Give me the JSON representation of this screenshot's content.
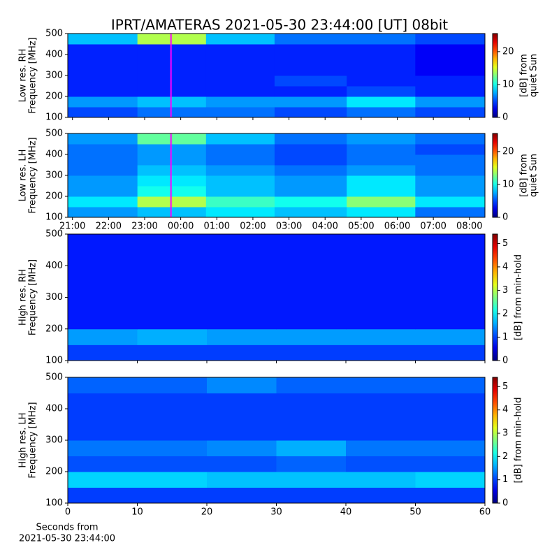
{
  "chart_data": [
    {
      "type": "heatmap",
      "title": "IPRT/AMATERAS 2021-05-30 23:44:00 [UT]   08bit",
      "ylabel": [
        "Low res. RH",
        "Frequency [MHz]"
      ],
      "colorbar_label": [
        "[dB] from",
        "quiet Sun"
      ],
      "x": [
        20.87,
        22.8,
        24.7,
        26.6,
        28.6,
        30.5,
        32.43
      ],
      "y": [
        100,
        150,
        200,
        250,
        300,
        350,
        400,
        450,
        500
      ],
      "xlim": [
        20.87,
        32.43
      ],
      "ylim": [
        100,
        500
      ],
      "yticks": [
        100,
        200,
        300,
        400,
        500
      ],
      "clim": [
        0,
        25.5
      ],
      "cticks": [
        0,
        10,
        20
      ],
      "colormap": "jet",
      "cursor_x": 23.73,
      "cursor_color": "#ff00ff",
      "z": [
        [
          5,
          6,
          6,
          5,
          6,
          5
        ],
        [
          7,
          8,
          7,
          7,
          9,
          7
        ],
        [
          4,
          4,
          4,
          4,
          5,
          4
        ],
        [
          4,
          4,
          4,
          5,
          4,
          4
        ],
        [
          4,
          4,
          4,
          4,
          4,
          3
        ],
        [
          4,
          4,
          4,
          4,
          4,
          3
        ],
        [
          4,
          4,
          4,
          4,
          4,
          3
        ],
        [
          8,
          14,
          8,
          6,
          6,
          5
        ]
      ]
    },
    {
      "type": "heatmap",
      "ylabel": [
        "Low res. LH",
        "Frequency [MHz]"
      ],
      "colorbar_label": [
        "[dB] from",
        "quiet Sun"
      ],
      "x": [
        20.87,
        22.8,
        24.7,
        26.6,
        28.6,
        30.5,
        32.43
      ],
      "y": [
        100,
        150,
        200,
        250,
        300,
        350,
        400,
        450,
        500
      ],
      "xlim": [
        20.87,
        32.43
      ],
      "ylim": [
        100,
        500
      ],
      "yticks": [
        100,
        200,
        300,
        400,
        500
      ],
      "xticks": [
        {
          "value": 21,
          "label": "21:00"
        },
        {
          "value": 22,
          "label": "22:00"
        },
        {
          "value": 23,
          "label": "23:00"
        },
        {
          "value": 24,
          "label": "00:00"
        },
        {
          "value": 25,
          "label": "01:00"
        },
        {
          "value": 26,
          "label": "02:00"
        },
        {
          "value": 27,
          "label": "03:00"
        },
        {
          "value": 28,
          "label": "04:00"
        },
        {
          "value": 29,
          "label": "05:00"
        },
        {
          "value": 30,
          "label": "06:00"
        },
        {
          "value": 31,
          "label": "07:00"
        },
        {
          "value": 32,
          "label": "08:00"
        }
      ],
      "clim": [
        0,
        25.5
      ],
      "cticks": [
        0,
        10,
        20
      ],
      "colormap": "jet",
      "cursor_x": 23.73,
      "cursor_color": "#ff00ff",
      "z": [
        [
          7,
          8,
          9,
          8,
          9,
          6
        ],
        [
          9,
          14,
          11,
          10,
          13,
          9
        ],
        [
          7,
          10,
          8,
          7,
          9,
          7
        ],
        [
          7,
          9,
          8,
          7,
          9,
          7
        ],
        [
          6,
          8,
          7,
          6,
          7,
          6
        ],
        [
          6,
          7,
          6,
          5,
          6,
          6
        ],
        [
          6,
          7,
          6,
          5,
          6,
          5
        ],
        [
          7,
          12,
          8,
          6,
          7,
          6
        ]
      ]
    },
    {
      "type": "heatmap",
      "ylabel": [
        "High res. RH",
        "Frequency [MHz]"
      ],
      "colorbar_label": [
        "[dB] from min-hold"
      ],
      "x": [
        0,
        10,
        20,
        30,
        40,
        50,
        60
      ],
      "y": [
        100,
        150,
        200,
        250,
        300,
        350,
        400,
        450,
        500
      ],
      "xlim": [
        0,
        60
      ],
      "ylim": [
        100,
        500
      ],
      "yticks": [
        100,
        200,
        300,
        400,
        500
      ],
      "clim": [
        0,
        5.4
      ],
      "cticks": [
        0,
        1,
        2,
        3,
        4,
        5
      ],
      "colormap": "jet",
      "z": [
        [
          1,
          1,
          1,
          1,
          1,
          1
        ],
        [
          1.5,
          1.6,
          1.5,
          1.5,
          1.5,
          1.5
        ],
        [
          0.8,
          0.8,
          0.8,
          0.8,
          0.8,
          0.8
        ],
        [
          0.8,
          0.8,
          0.8,
          0.8,
          0.8,
          0.8
        ],
        [
          0.8,
          0.8,
          0.8,
          0.8,
          0.8,
          0.8
        ],
        [
          0.8,
          0.8,
          0.8,
          0.8,
          0.8,
          0.8
        ],
        [
          0.8,
          0.8,
          0.8,
          0.8,
          0.8,
          0.8
        ],
        [
          0.8,
          0.8,
          0.8,
          0.8,
          0.8,
          0.8
        ]
      ]
    },
    {
      "type": "heatmap",
      "ylabel": [
        "High res. LH",
        "Frequency [MHz]"
      ],
      "colorbar_label": [
        "[dB] from min-hold"
      ],
      "xlabel": [
        "Seconds from",
        "2021-05-30 23:44:00"
      ],
      "x": [
        0,
        10,
        20,
        30,
        40,
        50,
        60
      ],
      "y": [
        100,
        150,
        200,
        250,
        300,
        350,
        400,
        450,
        500
      ],
      "xlim": [
        0,
        60
      ],
      "ylim": [
        100,
        500
      ],
      "yticks": [
        100,
        200,
        300,
        400,
        500
      ],
      "xticks": [
        0,
        10,
        20,
        30,
        40,
        50,
        60
      ],
      "clim": [
        0,
        5.4
      ],
      "cticks": [
        0,
        1,
        2,
        3,
        4,
        5
      ],
      "colormap": "jet",
      "z": [
        [
          1,
          1,
          1,
          1,
          1,
          1
        ],
        [
          1.8,
          1.8,
          1.7,
          1.7,
          1.7,
          1.8
        ],
        [
          1.1,
          1.1,
          1.1,
          1.2,
          1.1,
          1.1
        ],
        [
          1.3,
          1.3,
          1.4,
          1.6,
          1.3,
          1.3
        ],
        [
          1,
          1,
          1,
          1,
          1,
          1
        ],
        [
          1,
          1,
          1,
          1,
          1,
          1
        ],
        [
          1,
          1,
          1,
          1,
          1,
          1
        ],
        [
          1.2,
          1.2,
          1.4,
          1.2,
          1.2,
          1.2
        ]
      ]
    }
  ]
}
